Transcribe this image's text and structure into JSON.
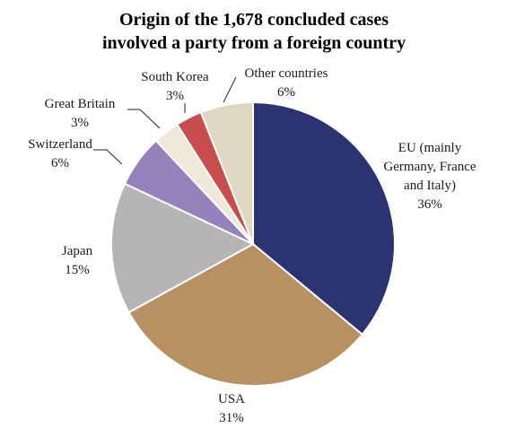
{
  "chart_data": {
    "type": "pie",
    "title_lines": [
      "Origin of the 1,678 concluded cases",
      "involved a party from a foreign country"
    ],
    "slices": [
      {
        "label_lines": [
          "EU (mainly",
          "Germany, France",
          "and Italy)"
        ],
        "value": 36,
        "value_label": "36%",
        "color": "#2b3471"
      },
      {
        "label_lines": [
          "USA"
        ],
        "value": 31,
        "value_label": "31%",
        "color": "#b89163"
      },
      {
        "label_lines": [
          "Japan"
        ],
        "value": 15,
        "value_label": "15%",
        "color": "#b5b5b5"
      },
      {
        "label_lines": [
          "Switzerland"
        ],
        "value": 6,
        "value_label": "6%",
        "color": "#9582bc"
      },
      {
        "label_lines": [
          "Great Britain"
        ],
        "value": 3,
        "value_label": "3%",
        "color": "#eee8d8"
      },
      {
        "label_lines": [
          "South Korea"
        ],
        "value": 3,
        "value_label": "3%",
        "color": "#c84d4d"
      },
      {
        "label_lines": [
          "Other countries"
        ],
        "value": 6,
        "value_label": "6%",
        "color": "#dfd7c2"
      }
    ],
    "start": "12 o'clock",
    "direction": "clockwise",
    "legend": "none"
  }
}
